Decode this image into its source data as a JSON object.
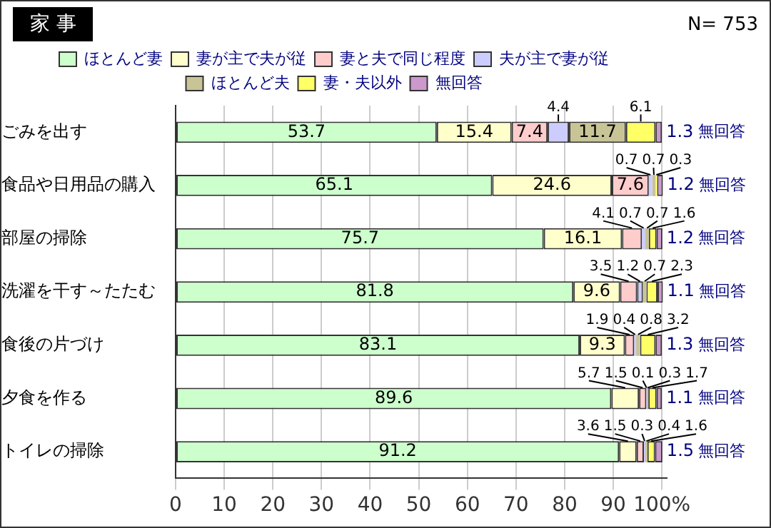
{
  "chart_data": {
    "type": "bar",
    "orientation": "horizontal",
    "stacked": true,
    "title": "家 事",
    "annotations": [
      "N= 753"
    ],
    "categories": [
      "ごみを出す",
      "食品や日用品の購入",
      "部屋の掃除",
      "洗濯を干す～たたむ",
      "食後の片づけ",
      "夕食を作る",
      "トイレの掃除"
    ],
    "series": [
      {
        "name": "ほとんど妻",
        "color": "#ccffcc",
        "values": [
          53.7,
          65.1,
          75.7,
          81.8,
          83.1,
          89.6,
          91.2
        ]
      },
      {
        "name": "妻が主で夫が従",
        "color": "#ffffcc",
        "values": [
          15.4,
          24.6,
          16.1,
          9.6,
          9.3,
          5.7,
          3.6
        ]
      },
      {
        "name": "妻と夫で同じ程度",
        "color": "#ffcccc",
        "values": [
          7.4,
          7.6,
          4.1,
          3.5,
          1.9,
          1.5,
          1.5
        ]
      },
      {
        "name": "夫が主で妻が従",
        "color": "#ccccff",
        "values": [
          4.4,
          0.7,
          0.7,
          1.2,
          0.4,
          0.1,
          0.3
        ]
      },
      {
        "name": "ほとんど夫",
        "color": "#c8c496",
        "values": [
          11.7,
          0.7,
          0.7,
          0.7,
          0.8,
          0.3,
          0.4
        ]
      },
      {
        "name": "妻・夫以外",
        "color": "#ffff66",
        "values": [
          6.1,
          0.3,
          1.6,
          2.3,
          3.2,
          1.7,
          1.6
        ]
      },
      {
        "name": "無回答",
        "color": "#cc99cc",
        "values": [
          1.3,
          1.2,
          1.2,
          1.1,
          1.3,
          1.1,
          1.5
        ]
      }
    ],
    "xlim": [
      0,
      101
    ],
    "xticks": [
      0,
      10,
      20,
      30,
      40,
      50,
      60,
      70,
      80,
      90,
      {
        "value": 100,
        "label": "100%"
      }
    ],
    "grid": "x",
    "legend": "top",
    "data_labels": true
  }
}
